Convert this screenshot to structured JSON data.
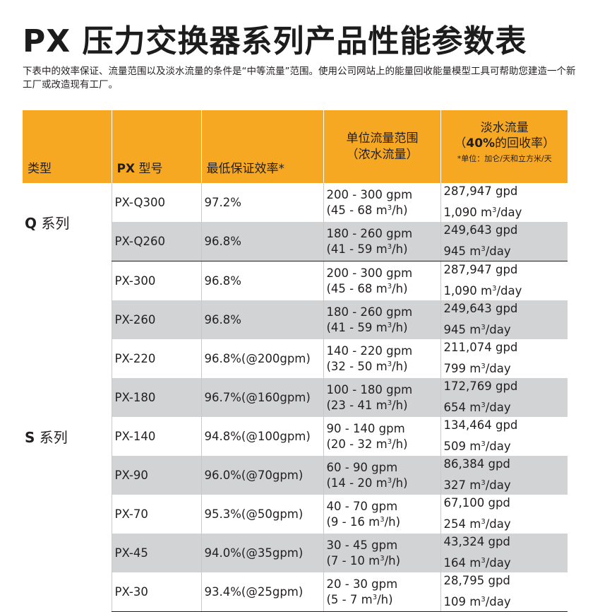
{
  "title": "PX 压力交换器系列产品性能参数表",
  "intro": "下表中的效率保证、流量范围以及淡水流量的条件是“中等流量”范围。使用公司网站上的能量回收能量模型工具可帮助您建造一个新工厂或改造现有工厂。",
  "header": {
    "type": "类型",
    "model_prefix": "PX",
    "model_suffix": " 型号",
    "efficiency": "最低保证效率*",
    "flow_line1": "单位流量范围",
    "flow_line2": "（浓水流量）",
    "fresh_line1": "淡水流量",
    "fresh_open": "（",
    "fresh_pct": "40%",
    "fresh_rest": "的回收率）",
    "fresh_note": "*单位：加仑/天和立方米/天"
  },
  "colors": {
    "header_bg": "#f7a823",
    "row_gray": "#d1d3d4",
    "text": "#231f20"
  },
  "series": [
    {
      "letter": "Q",
      "name": " 系列",
      "rows": [
        {
          "model": "PX-Q300",
          "efficiency": "97.2%",
          "flow_gpm": "200 - 300 gpm",
          "flow_m3h": "(45 - 68 m",
          "fresh_gpd": "287,947 gpd",
          "fresh_m3": "1,090 m"
        },
        {
          "model": "PX-Q260",
          "efficiency": "96.8%",
          "flow_gpm": "180 - 260 gpm",
          "flow_m3h": "(41 - 59 m",
          "fresh_gpd": "249,643 gpd",
          "fresh_m3": "945 m"
        }
      ]
    },
    {
      "letter": "S",
      "name": " 系列",
      "rows": [
        {
          "model": "PX-300",
          "efficiency": "96.8%",
          "flow_gpm": "200 - 300 gpm",
          "flow_m3h": "(45 - 68 m",
          "fresh_gpd": "287,947 gpd",
          "fresh_m3": "1,090 m"
        },
        {
          "model": "PX-260",
          "efficiency": "96.8%",
          "flow_gpm": "180 - 260 gpm",
          "flow_m3h": "(41 - 59 m",
          "fresh_gpd": "249,643 gpd",
          "fresh_m3": "945 m"
        },
        {
          "model": "PX-220",
          "efficiency": "96.8%(@200gpm)",
          "flow_gpm": "140 - 220 gpm",
          "flow_m3h": "(32 - 50 m",
          "fresh_gpd": "211,074 gpd",
          "fresh_m3": "799 m"
        },
        {
          "model": "PX-180",
          "efficiency": "96.7%(@160gpm)",
          "flow_gpm": "100 - 180 gpm",
          "flow_m3h": "(23 - 41 m",
          "fresh_gpd": "172,769 gpd",
          "fresh_m3": "654 m"
        },
        {
          "model": "PX-140",
          "efficiency": "94.8%(@100gpm)",
          "flow_gpm": "90 - 140 gpm",
          "flow_m3h": "(20 - 32 m",
          "fresh_gpd": "134,464 gpd",
          "fresh_m3": "509 m"
        },
        {
          "model": "PX-90",
          "efficiency": "96.0%(@70gpm)",
          "flow_gpm": "60 - 90 gpm",
          "flow_m3h": "(14 - 20 m",
          "fresh_gpd": "86,384 gpd",
          "fresh_m3": "327 m"
        },
        {
          "model": "PX-70",
          "efficiency": "95.3%(@50gpm)",
          "flow_gpm": "40 - 70 gpm",
          "flow_m3h": "(9 - 16 m",
          "fresh_gpd": "67,100 gpd",
          "fresh_m3": "254 m"
        },
        {
          "model": "PX-45",
          "efficiency": "94.0%(@35gpm)",
          "flow_gpm": "30 - 45 gpm",
          "flow_m3h": "(7 - 10 m",
          "fresh_gpd": "43,324 gpd",
          "fresh_m3": "164 m"
        },
        {
          "model": "PX-30",
          "efficiency": "93.4%(@25gpm)",
          "flow_gpm": "20 - 30 gpm",
          "flow_m3h": "(5 - 7 m",
          "fresh_gpd": "28,795 gpd",
          "fresh_m3": "109 m"
        }
      ]
    }
  ],
  "units": {
    "cube": "3",
    "per_hour": "/h)",
    "per_day": "/day"
  }
}
